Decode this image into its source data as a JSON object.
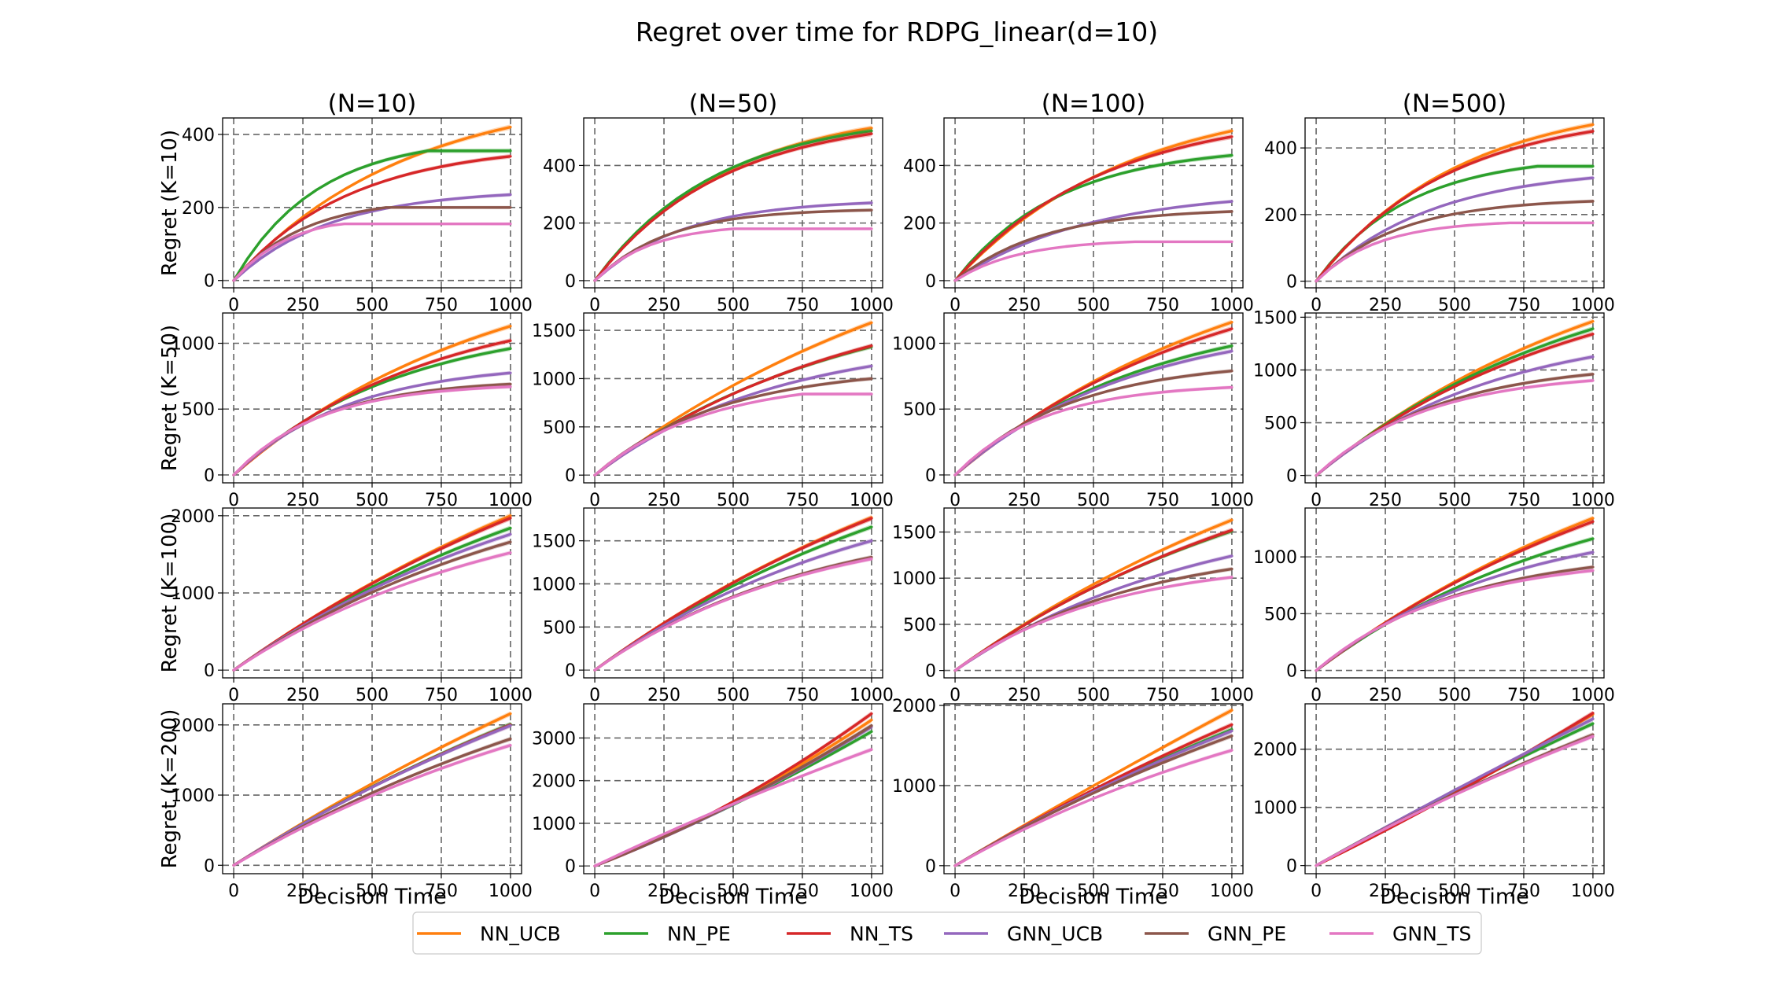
{
  "chart_data": {
    "type": "line",
    "title": "Regret over time for RDPG_linear(d=10)",
    "xlabel": "Decision Time",
    "ylabel_prefix": "Regret",
    "x": [
      0,
      50,
      100,
      150,
      200,
      250,
      300,
      350,
      400,
      450,
      500,
      550,
      600,
      650,
      700,
      750,
      800,
      850,
      900,
      950,
      1000
    ],
    "xlim": [
      -40,
      1040
    ],
    "x_ticks": [
      "0",
      "250",
      "500",
      "750",
      "1000"
    ],
    "grid": true,
    "legend_position": "bottom-center",
    "legend": [
      {
        "name": "NN_UCB",
        "color": "#ff7f0e"
      },
      {
        "name": "NN_PE",
        "color": "#2ca02c"
      },
      {
        "name": "NN_TS",
        "color": "#d62728"
      },
      {
        "name": "GNN_UCB",
        "color": "#9467bd"
      },
      {
        "name": "GNN_PE",
        "color": "#8c564b"
      },
      {
        "name": "GNN_TS",
        "color": "#e377c2"
      }
    ],
    "columns": [
      "(N=10)",
      "(N=50)",
      "(N=100)",
      "(N=500)"
    ],
    "rows": [
      "Regret (K=10)",
      "Regret (K=50)",
      "Regret (K=100)",
      "Regret (K=200)"
    ],
    "panels": [
      {
        "row": 0,
        "col": 0,
        "ylim": [
          -20,
          445
        ],
        "y_ticks": [
          0,
          200,
          400
        ],
        "series": [
          {
            "name": "NN_UCB",
            "final": 420,
            "shape": "linear",
            "scale": 620
          },
          {
            "name": "NN_PE",
            "final": 355,
            "shape": "plateau",
            "scale": 300,
            "plateau_at": 700
          },
          {
            "name": "NN_TS",
            "final": 340,
            "shape": "concave",
            "scale": 420
          },
          {
            "name": "GNN_UCB",
            "final": 235,
            "shape": "concave",
            "scale": 350
          },
          {
            "name": "GNN_PE",
            "final": 200,
            "shape": "plateau",
            "scale": 250,
            "plateau_at": 550
          },
          {
            "name": "GNN_TS",
            "final": 155,
            "shape": "plateau",
            "scale": 200,
            "plateau_at": 380
          }
        ]
      },
      {
        "row": 0,
        "col": 1,
        "ylim": [
          -25,
          565
        ],
        "y_ticks": [
          0,
          200,
          400
        ],
        "series": [
          {
            "name": "NN_UCB",
            "final": 530,
            "shape": "concave",
            "scale": 480
          },
          {
            "name": "NN_PE",
            "final": 520,
            "shape": "concave",
            "scale": 440
          },
          {
            "name": "NN_TS",
            "final": 510,
            "shape": "concave",
            "scale": 460
          },
          {
            "name": "GNN_UCB",
            "final": 270,
            "shape": "concave",
            "scale": 320
          },
          {
            "name": "GNN_PE",
            "final": 245,
            "shape": "concave",
            "scale": 260
          },
          {
            "name": "GNN_TS",
            "final": 180,
            "shape": "plateau",
            "scale": 200,
            "plateau_at": 500
          }
        ]
      },
      {
        "row": 0,
        "col": 2,
        "ylim": [
          -25,
          565
        ],
        "y_ticks": [
          0,
          200,
          400
        ],
        "series": [
          {
            "name": "NN_UCB",
            "final": 520,
            "shape": "concave",
            "scale": 620
          },
          {
            "name": "NN_PE",
            "final": 435,
            "shape": "concave",
            "scale": 380
          },
          {
            "name": "NN_TS",
            "final": 500,
            "shape": "concave",
            "scale": 540
          },
          {
            "name": "GNN_UCB",
            "final": 275,
            "shape": "concave",
            "scale": 480
          },
          {
            "name": "GNN_PE",
            "final": 240,
            "shape": "concave",
            "scale": 320
          },
          {
            "name": "GNN_TS",
            "final": 135,
            "shape": "plateau",
            "scale": 230,
            "plateau_at": 650
          }
        ]
      },
      {
        "row": 0,
        "col": 3,
        "ylim": [
          -20,
          490
        ],
        "y_ticks": [
          0,
          200,
          400
        ],
        "series": [
          {
            "name": "NN_UCB",
            "final": 470,
            "shape": "concave",
            "scale": 520
          },
          {
            "name": "NN_PE",
            "final": 345,
            "shape": "plateau",
            "scale": 330,
            "plateau_at": 800
          },
          {
            "name": "NN_TS",
            "final": 450,
            "shape": "concave",
            "scale": 480
          },
          {
            "name": "GNN_UCB",
            "final": 310,
            "shape": "concave",
            "scale": 420
          },
          {
            "name": "GNN_PE",
            "final": 240,
            "shape": "concave",
            "scale": 300
          },
          {
            "name": "GNN_TS",
            "final": 175,
            "shape": "plateau",
            "scale": 220,
            "plateau_at": 700
          }
        ]
      },
      {
        "row": 1,
        "col": 0,
        "ylim": [
          -60,
          1230
        ],
        "y_ticks": [
          0,
          500,
          1000
        ],
        "series": [
          {
            "name": "NN_UCB",
            "final": 1130,
            "shape": "concave",
            "scale": 950
          },
          {
            "name": "NN_PE",
            "final": 960,
            "shape": "concave",
            "scale": 600
          },
          {
            "name": "NN_TS",
            "final": 1020,
            "shape": "concave",
            "scale": 700
          },
          {
            "name": "GNN_UCB",
            "final": 775,
            "shape": "concave",
            "scale": 420
          },
          {
            "name": "GNN_PE",
            "final": 690,
            "shape": "concave",
            "scale": 330
          },
          {
            "name": "GNN_TS",
            "final": 670,
            "shape": "concave",
            "scale": 310
          }
        ]
      },
      {
        "row": 1,
        "col": 1,
        "ylim": [
          -80,
          1680
        ],
        "y_ticks": [
          0,
          500,
          1000,
          1500
        ],
        "series": [
          {
            "name": "NN_UCB",
            "final": 1580,
            "shape": "concave",
            "scale": 1400
          },
          {
            "name": "NN_PE",
            "final": 1330,
            "shape": "concave",
            "scale": 900
          },
          {
            "name": "NN_TS",
            "final": 1340,
            "shape": "concave",
            "scale": 950
          },
          {
            "name": "GNN_UCB",
            "final": 1130,
            "shape": "concave",
            "scale": 650
          },
          {
            "name": "GNN_PE",
            "final": 1000,
            "shape": "concave",
            "scale": 450
          },
          {
            "name": "GNN_TS",
            "final": 840,
            "shape": "plateau",
            "scale": 400,
            "plateau_at": 750
          }
        ]
      },
      {
        "row": 1,
        "col": 2,
        "ylim": [
          -60,
          1230
        ],
        "y_ticks": [
          0,
          500,
          1000
        ],
        "series": [
          {
            "name": "NN_UCB",
            "final": 1160,
            "shape": "concave",
            "scale": 1100
          },
          {
            "name": "NN_PE",
            "final": 980,
            "shape": "concave",
            "scale": 700
          },
          {
            "name": "NN_TS",
            "final": 1110,
            "shape": "concave",
            "scale": 950
          },
          {
            "name": "GNN_UCB",
            "final": 940,
            "shape": "concave",
            "scale": 650
          },
          {
            "name": "GNN_PE",
            "final": 790,
            "shape": "concave",
            "scale": 420
          },
          {
            "name": "GNN_TS",
            "final": 665,
            "shape": "concave",
            "scale": 320
          }
        ]
      },
      {
        "row": 1,
        "col": 3,
        "ylim": [
          -70,
          1540
        ],
        "y_ticks": [
          0,
          500,
          1000,
          1500
        ],
        "series": [
          {
            "name": "NN_UCB",
            "final": 1460,
            "shape": "concave",
            "scale": 1150
          },
          {
            "name": "NN_PE",
            "final": 1390,
            "shape": "concave",
            "scale": 1000
          },
          {
            "name": "NN_TS",
            "final": 1340,
            "shape": "concave",
            "scale": 950
          },
          {
            "name": "GNN_UCB",
            "final": 1125,
            "shape": "concave",
            "scale": 650
          },
          {
            "name": "GNN_PE",
            "final": 960,
            "shape": "concave",
            "scale": 450
          },
          {
            "name": "GNN_TS",
            "final": 900,
            "shape": "concave",
            "scale": 400
          }
        ]
      },
      {
        "row": 2,
        "col": 0,
        "ylim": [
          -100,
          2100
        ],
        "y_ticks": [
          0,
          1000,
          2000
        ],
        "series": [
          {
            "name": "NN_UCB",
            "final": 2000,
            "shape": "concave",
            "scale": 1900
          },
          {
            "name": "NN_PE",
            "final": 1840,
            "shape": "concave",
            "scale": 1450
          },
          {
            "name": "NN_TS",
            "final": 1970,
            "shape": "concave",
            "scale": 1800
          },
          {
            "name": "GNN_UCB",
            "final": 1760,
            "shape": "concave",
            "scale": 1300
          },
          {
            "name": "GNN_PE",
            "final": 1660,
            "shape": "concave",
            "scale": 1150
          },
          {
            "name": "GNN_TS",
            "final": 1520,
            "shape": "concave",
            "scale": 980
          }
        ]
      },
      {
        "row": 2,
        "col": 1,
        "ylim": [
          -90,
          1880
        ],
        "y_ticks": [
          0,
          500,
          1000,
          1500
        ],
        "series": [
          {
            "name": "NN_UCB",
            "final": 1770,
            "shape": "concave",
            "scale": 1650
          },
          {
            "name": "NN_PE",
            "final": 1660,
            "shape": "concave",
            "scale": 1400
          },
          {
            "name": "NN_TS",
            "final": 1760,
            "shape": "concave",
            "scale": 1650
          },
          {
            "name": "GNN_UCB",
            "final": 1500,
            "shape": "concave",
            "scale": 1050
          },
          {
            "name": "GNN_PE",
            "final": 1310,
            "shape": "concave",
            "scale": 800
          },
          {
            "name": "GNN_TS",
            "final": 1290,
            "shape": "concave",
            "scale": 780
          }
        ]
      },
      {
        "row": 2,
        "col": 2,
        "ylim": [
          -80,
          1760
        ],
        "y_ticks": [
          0,
          500,
          1000,
          1500
        ],
        "series": [
          {
            "name": "NN_UCB",
            "final": 1630,
            "shape": "concave",
            "scale": 1700
          },
          {
            "name": "NN_PE",
            "final": 1510,
            "shape": "concave",
            "scale": 1300
          },
          {
            "name": "NN_TS",
            "final": 1520,
            "shape": "concave",
            "scale": 1350
          },
          {
            "name": "GNN_UCB",
            "final": 1240,
            "shape": "concave",
            "scale": 900
          },
          {
            "name": "GNN_PE",
            "final": 1100,
            "shape": "concave",
            "scale": 650
          },
          {
            "name": "GNN_TS",
            "final": 1010,
            "shape": "concave",
            "scale": 550
          }
        ]
      },
      {
        "row": 2,
        "col": 3,
        "ylim": [
          -65,
          1430
        ],
        "y_ticks": [
          0,
          500,
          1000
        ],
        "series": [
          {
            "name": "NN_UCB",
            "final": 1340,
            "shape": "concave",
            "scale": 1500
          },
          {
            "name": "NN_PE",
            "final": 1160,
            "shape": "concave",
            "scale": 1000
          },
          {
            "name": "NN_TS",
            "final": 1310,
            "shape": "concave",
            "scale": 1400
          },
          {
            "name": "GNN_UCB",
            "final": 1040,
            "shape": "concave",
            "scale": 700
          },
          {
            "name": "GNN_PE",
            "final": 910,
            "shape": "concave",
            "scale": 520
          },
          {
            "name": "GNN_TS",
            "final": 880,
            "shape": "concave",
            "scale": 480
          }
        ]
      },
      {
        "row": 3,
        "col": 0,
        "ylim": [
          -120,
          2300
        ],
        "y_ticks": [
          0,
          1000,
          2000
        ],
        "series": [
          {
            "name": "NN_UCB",
            "final": 2160,
            "shape": "concave",
            "scale": 3200
          },
          {
            "name": "NN_PE",
            "final": 2010,
            "shape": "concave",
            "scale": 2200
          },
          {
            "name": "NN_TS",
            "final": 2000,
            "shape": "concave",
            "scale": 2200
          },
          {
            "name": "GNN_UCB",
            "final": 1990,
            "shape": "concave",
            "scale": 2150
          },
          {
            "name": "GNN_PE",
            "final": 1800,
            "shape": "concave",
            "scale": 1700
          },
          {
            "name": "GNN_TS",
            "final": 1710,
            "shape": "concave",
            "scale": 1550
          }
        ]
      },
      {
        "row": 3,
        "col": 1,
        "ylim": [
          -180,
          3800
        ],
        "y_ticks": [
          0,
          1000,
          2000,
          3000
        ],
        "series": [
          {
            "name": "NN_UCB",
            "final": 3420,
            "shape": "convex",
            "scale": 0.35
          },
          {
            "name": "NN_PE",
            "final": 3150,
            "shape": "convex",
            "scale": 0.22
          },
          {
            "name": "NN_TS",
            "final": 3570,
            "shape": "convex",
            "scale": 0.45
          },
          {
            "name": "GNN_UCB",
            "final": 3260,
            "shape": "convex",
            "scale": 0.3
          },
          {
            "name": "GNN_PE",
            "final": 3290,
            "shape": "convex",
            "scale": 0.3
          },
          {
            "name": "GNN_TS",
            "final": 2730,
            "shape": "concave",
            "scale": 3800
          }
        ]
      },
      {
        "row": 3,
        "col": 2,
        "ylim": [
          -100,
          2020
        ],
        "y_ticks": [
          0,
          1000,
          2000
        ],
        "series": [
          {
            "name": "NN_UCB",
            "final": 1940,
            "shape": "linear",
            "scale": 9000
          },
          {
            "name": "NN_PE",
            "final": 1700,
            "shape": "concave",
            "scale": 2600
          },
          {
            "name": "NN_TS",
            "final": 1760,
            "shape": "concave",
            "scale": 3200
          },
          {
            "name": "GNN_UCB",
            "final": 1680,
            "shape": "concave",
            "scale": 2500
          },
          {
            "name": "GNN_PE",
            "final": 1620,
            "shape": "concave",
            "scale": 2100
          },
          {
            "name": "GNN_TS",
            "final": 1440,
            "shape": "concave",
            "scale": 1500
          }
        ]
      },
      {
        "row": 3,
        "col": 3,
        "ylim": [
          -140,
          2780
        ],
        "y_ticks": [
          0,
          1000,
          2000
        ],
        "series": [
          {
            "name": "NN_UCB",
            "final": 2600,
            "shape": "convex",
            "scale": 0.1
          },
          {
            "name": "NN_PE",
            "final": 2440,
            "shape": "concave",
            "scale": 5000
          },
          {
            "name": "NN_TS",
            "final": 2620,
            "shape": "convex",
            "scale": 0.12
          },
          {
            "name": "GNN_UCB",
            "final": 2520,
            "shape": "linear",
            "scale": 9000
          },
          {
            "name": "GNN_PE",
            "final": 2250,
            "shape": "concave",
            "scale": 2800
          },
          {
            "name": "GNN_TS",
            "final": 2220,
            "shape": "concave",
            "scale": 2700
          }
        ]
      }
    ]
  }
}
